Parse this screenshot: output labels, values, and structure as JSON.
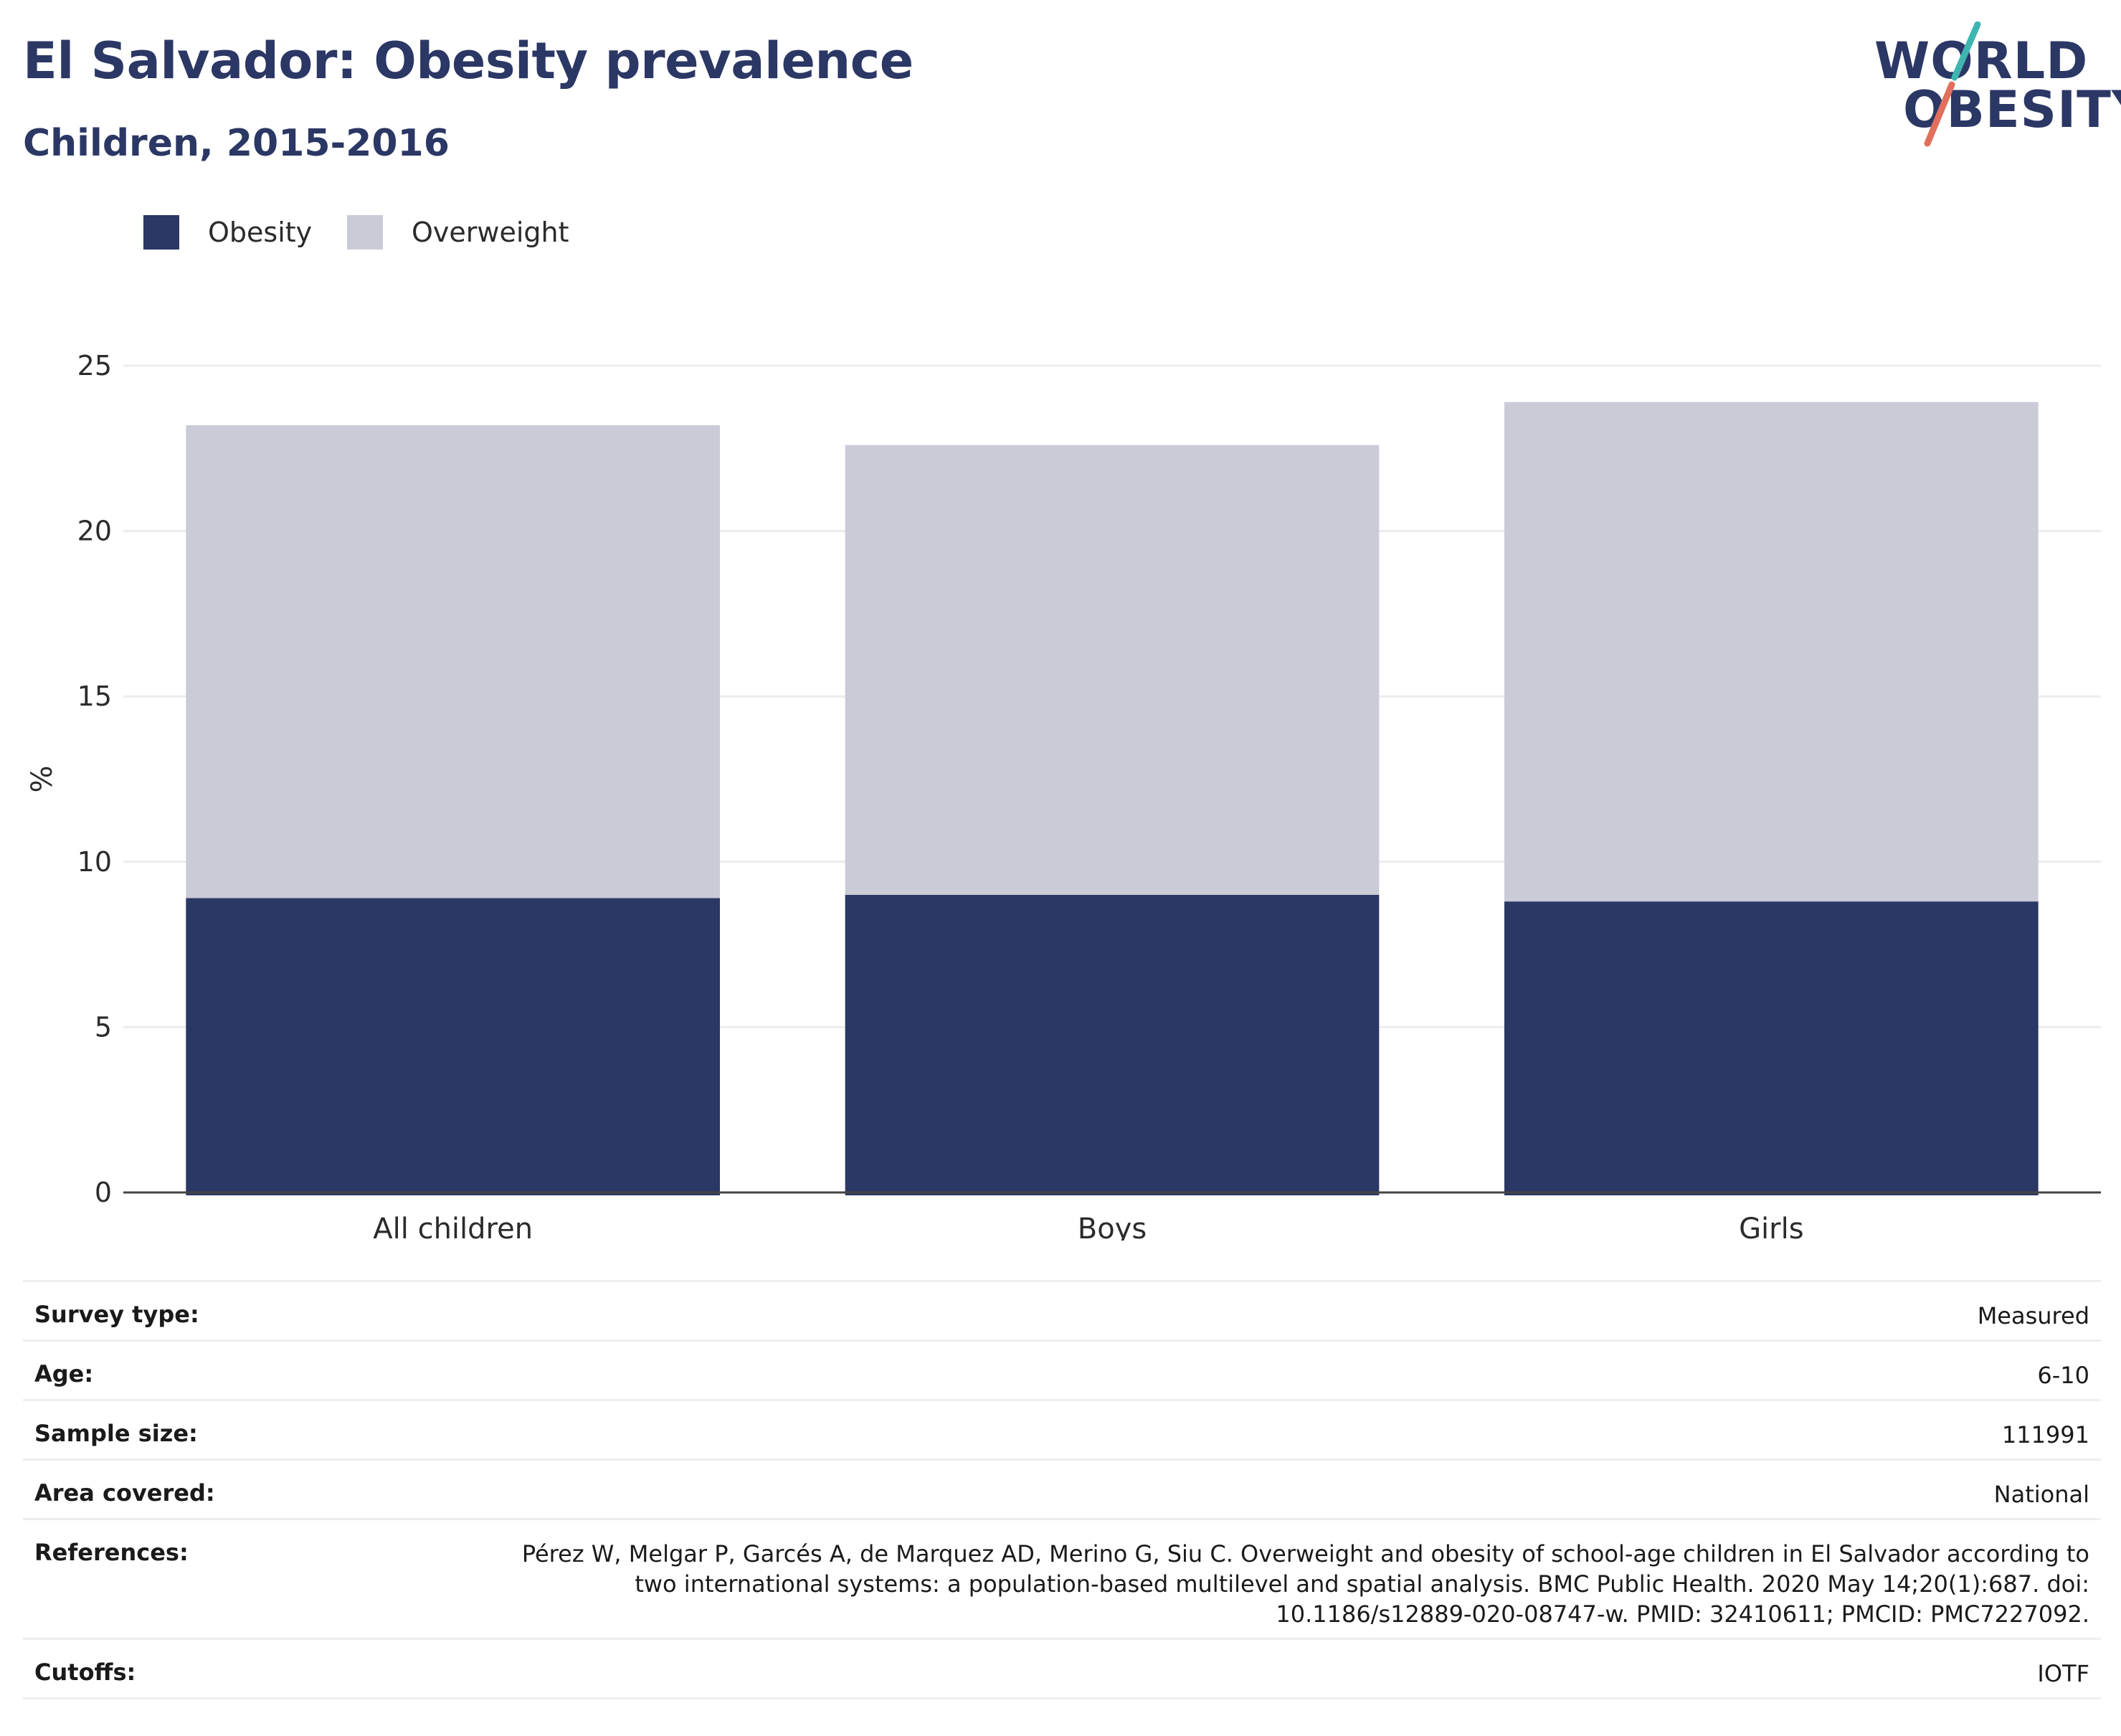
{
  "title": "El Salvador: Obesity prevalence",
  "subtitle": "Children, 2015-2016",
  "logo": {
    "line1": "WORLD",
    "line2": "OBESITY"
  },
  "colors": {
    "obesity": "#2b3764",
    "overweight": "#cacbd7",
    "text": "#2b3764",
    "logo_teal": "#3fb5b0",
    "logo_coral": "#e0705c"
  },
  "chart_data": {
    "type": "bar",
    "stacked": true,
    "categories": [
      "All children",
      "Boys",
      "Girls"
    ],
    "series": [
      {
        "name": "Obesity",
        "values": [
          8.9,
          9.0,
          8.8
        ]
      },
      {
        "name": "Overweight",
        "values": [
          14.3,
          13.6,
          15.1
        ]
      }
    ],
    "ylabel": "%",
    "ylim": [
      0,
      25
    ],
    "yticks": [
      0,
      5,
      10,
      15,
      20,
      25
    ],
    "grid": true,
    "legend": "top-left"
  },
  "details": [
    {
      "label": "Survey type:",
      "value": "Measured"
    },
    {
      "label": "Age:",
      "value": "6-10"
    },
    {
      "label": "Sample size:",
      "value": "111991"
    },
    {
      "label": "Area covered:",
      "value": "National"
    },
    {
      "label": "References:",
      "value": "Pérez W, Melgar P, Garcés A, de Marquez AD, Merino G, Siu C. Overweight and obesity of school-age children in El Salvador according to two international systems: a population-based multilevel and spatial analysis. BMC Public Health. 2020 May 14;20(1):687. doi: 10.1186/s12889-020-08747-w. PMID: 32410611; PMCID: PMC7227092."
    },
    {
      "label": "Cutoffs:",
      "value": "IOTF"
    }
  ]
}
